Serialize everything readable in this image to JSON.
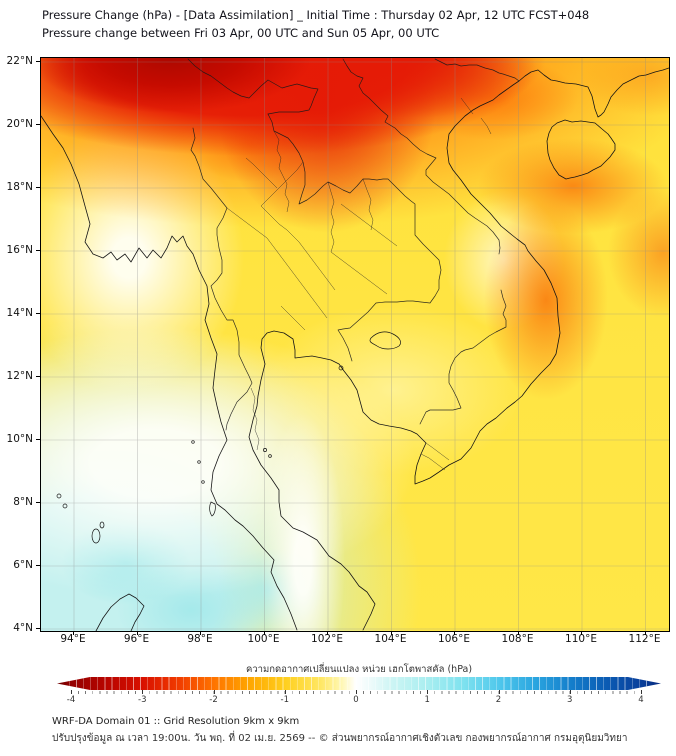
{
  "title": {
    "line1": "Pressure Change (hPa) - [Data Assimilation] _ Initial Time : Thursday 02 Apr, 12 UTC FCST+048",
    "line2": "Pressure change between Fri 03 Apr, 00 UTC and Sun 05 Apr, 00 UTC"
  },
  "colorbar": {
    "label": "ความกดอากาศเปลี่ยนแปลง หน่วย เฮกโตพาสคัล (hPa)",
    "ticks": [
      "-4",
      "-3",
      "-2",
      "-1",
      "0",
      "1",
      "2",
      "3",
      "4"
    ],
    "gradient": [
      {
        "v": -4.35,
        "c": "#6e0000"
      },
      {
        "v": -4.0,
        "c": "#930000"
      },
      {
        "v": -3.5,
        "c": "#b80500"
      },
      {
        "v": -3.0,
        "c": "#d81000"
      },
      {
        "v": -2.5,
        "c": "#f03a00"
      },
      {
        "v": -2.0,
        "c": "#ff7300"
      },
      {
        "v": -1.5,
        "c": "#ffa600"
      },
      {
        "v": -1.0,
        "c": "#ffcf1e"
      },
      {
        "v": -0.5,
        "c": "#ffe763"
      },
      {
        "v": -0.2,
        "c": "#fff7b4"
      },
      {
        "v": 0.0,
        "c": "#ffffff"
      },
      {
        "v": 0.2,
        "c": "#eefbfb"
      },
      {
        "v": 0.5,
        "c": "#cdf5f4"
      },
      {
        "v": 1.0,
        "c": "#a9eef0"
      },
      {
        "v": 1.5,
        "c": "#7fe2ef"
      },
      {
        "v": 2.0,
        "c": "#50c8ec"
      },
      {
        "v": 2.5,
        "c": "#2ba6e0"
      },
      {
        "v": 3.0,
        "c": "#1580cc"
      },
      {
        "v": 3.5,
        "c": "#0b5cb4"
      },
      {
        "v": 4.0,
        "c": "#093f9b"
      },
      {
        "v": 4.35,
        "c": "#072a7e"
      }
    ]
  },
  "footer": {
    "line1": "WRF-DA Domain 01 :: Grid Resolution 9km x 9km",
    "line2": "ปรับปรุงข้อมูล ณ เวลา 19:00น. วัน พฤ. ที่ 02 เม.ย. 2569 -- © ส่วนพยากรณ์อากาศเชิงตัวเลข กองพยากรณ์อากาศ กรมอุตุนิยมวิทยา"
  },
  "chart_data": {
    "type": "heatmap",
    "title": "Pressure Change (hPa) - [Data Assimilation]",
    "x_axis": {
      "ticks": [
        "94°E",
        "96°E",
        "98°E",
        "100°E",
        "102°E",
        "104°E",
        "106°E",
        "108°E",
        "110°E",
        "112°E"
      ],
      "range_deg_east": [
        93.0,
        112.7
      ]
    },
    "y_axis": {
      "ticks": [
        "22°N",
        "20°N",
        "18°N",
        "16°N",
        "14°N",
        "12°N",
        "10°N",
        "8°N",
        "6°N",
        "4°N"
      ],
      "range_deg_north": [
        4.0,
        22.1
      ]
    },
    "colorbar_scale_hpa": {
      "min": -4,
      "max": 4,
      "tick_step": 1,
      "negative_side": "red (pressure fall)",
      "positive_side": "blue (pressure rise)",
      "zero": "white"
    },
    "grid": "on, light gray every 2 degrees",
    "legend_position": "horizontal colorbar below map",
    "features": [
      {
        "region": "20N-22N, 94E-104E (N Thailand / N Laos / NW Vietnam)",
        "value_hpa": -3.5
      },
      {
        "region": "19N-20N near 99E-100E",
        "value_hpa": -2
      },
      {
        "region": "20.5N-21.5N, 105E-108E (Gulf of Tonkin coast)",
        "value_hpa": -2
      },
      {
        "region": "17N-18.5N, 108E-111E (south of Hainan)",
        "value_hpa": -2
      },
      {
        "region": "12.5N-15.5N, 108E-110E (S Vietnam coast)",
        "value_hpa": -2
      },
      {
        "region": "most land areas (Thailand, Cambodia, gulfs)",
        "value_hpa": -1
      },
      {
        "region": "15N-17N, 94E-97E (Myanmar coast)",
        "value_hpa": 0
      },
      {
        "region": "4N-12N west of 101E (Andaman Sea, S peninsula)",
        "value_hpa": 0.4
      }
    ]
  }
}
